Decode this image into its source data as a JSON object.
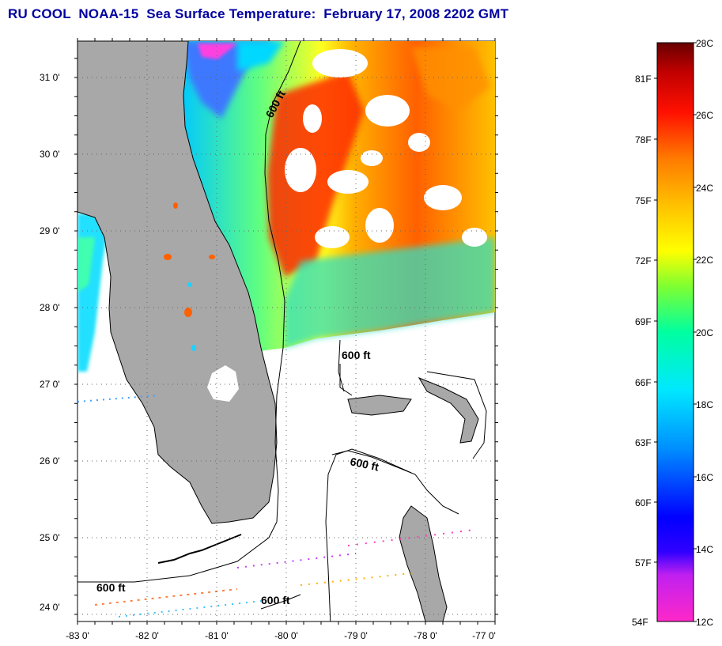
{
  "title": "RU COOL  NOAA-15  Sea Surface Temperature:  February 17, 2008 2202 GMT",
  "map": {
    "lon_range": [
      -83,
      -77
    ],
    "lat_range": [
      23.85,
      31.45
    ],
    "x_tick_labels": [
      "-83 0'",
      "-82 0'",
      "-81 0'",
      "-80 0'",
      "-79 0'",
      "-78 0'",
      "-77 0'"
    ],
    "y_tick_labels": [
      "31 0'",
      "30 0'",
      "29 0'",
      "28 0'",
      "27 0'",
      "26 0'",
      "25 0'",
      "24 0'"
    ],
    "contour_labels": [
      "600 ft",
      "600 ft",
      "600 ft",
      "600 ft",
      "600 ft"
    ],
    "grid": "dotted",
    "land_color": "#a8a8a8",
    "no_data_color": "#ffffff"
  },
  "colorbar": {
    "celsius_labels": [
      "28C",
      "26C",
      "24C",
      "22C",
      "20C",
      "18C",
      "16C",
      "14C",
      "12C"
    ],
    "fahrenheit_labels": [
      "81F",
      "78F",
      "75F",
      "72F",
      "69F",
      "66F",
      "63F",
      "60F",
      "57F",
      "54F"
    ],
    "celsius_range": [
      12,
      28
    ],
    "colors": [
      "#ff28c8",
      "#b000ff",
      "#0000ff",
      "#0080ff",
      "#00e0ff",
      "#00ff90",
      "#a0ff00",
      "#ffff00",
      "#ffc000",
      "#ff7000",
      "#ff0000",
      "#c00000",
      "#700000"
    ]
  }
}
